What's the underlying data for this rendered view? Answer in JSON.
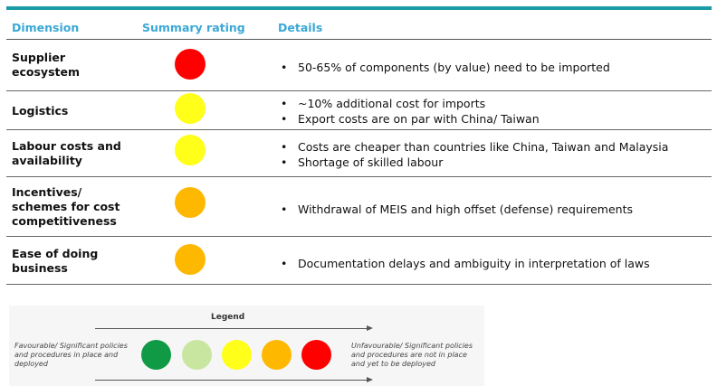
{
  "headers": {
    "dimension": "Dimension",
    "rating": "Summary rating",
    "details": "Details"
  },
  "rows": [
    {
      "dimension": "Supplier ecosystem",
      "rating_color": "#ff0000",
      "details": [
        "50-65% of components (by value) need to be imported"
      ]
    },
    {
      "dimension": "Logistics",
      "rating_color": "#ffff1a",
      "details": [
        "~10% additional cost for imports",
        "Export costs are on par with China/ Taiwan"
      ]
    },
    {
      "dimension": "Labour costs and availability",
      "rating_color": "#ffff1a",
      "details": [
        "Costs are cheaper than countries like China, Taiwan and Malaysia",
        "Shortage of skilled labour"
      ]
    },
    {
      "dimension": "Incentives/ schemes for cost competitiveness",
      "rating_color": "#ffb800",
      "details": [
        "Withdrawal of MEIS and high offset (defense) requirements"
      ]
    },
    {
      "dimension": "Ease of doing business",
      "rating_color": "#ffb800",
      "details": [
        "Documentation delays and ambiguity in interpretation of laws"
      ]
    }
  ],
  "legend": {
    "title": "Legend",
    "left_text": "Favourable/ Significant policies and procedures in place and deployed",
    "right_text": "Unfavourable/ Significant policies and procedures are not in place and yet to be deployed",
    "colors": [
      "#109a46",
      "#c8e6a0",
      "#ffff1a",
      "#ffb800",
      "#ff0000"
    ]
  }
}
